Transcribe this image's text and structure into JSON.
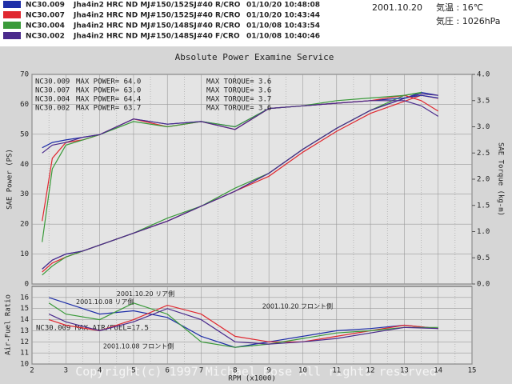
{
  "header": {
    "runs": [
      {
        "id": "NC30.009",
        "color": "#1e2ea8",
        "desc": "Jha4in2 HRC ND MJ#150/152SJ#40 R/CRO",
        "time": "01/10/20 10:48:08"
      },
      {
        "id": "NC30.007",
        "color": "#e02830",
        "desc": "Jha4in2 HRC ND MJ#150/152SJ#40 R/CRO",
        "time": "01/10/20 10:43:44"
      },
      {
        "id": "NC30.004",
        "color": "#3a9a3a",
        "desc": "Jha4in2 HRC ND MJ#150/148SJ#40 R/CRO",
        "time": "01/10/08 10:43:54"
      },
      {
        "id": "NC30.002",
        "color": "#4a2a8c",
        "desc": "Jha4in2 HRC ND MJ#150/148SJ#40 F/CRO",
        "time": "01/10/08 10:40:46"
      }
    ],
    "date": "2001.10.20",
    "temperature": "気温 : 16℃",
    "pressure": "気圧 : 1026hPa"
  },
  "chart_data": [
    {
      "type": "line",
      "title": "Absolute Power Examine Service",
      "ylabel": "SAE Power (PS)",
      "y2label": "SAE Torque (kg-m)",
      "x": [
        2.3,
        2.6,
        3,
        3.5,
        4,
        5,
        6,
        7,
        8,
        9,
        10,
        11,
        12,
        13,
        13.5,
        14
      ],
      "xlim": [
        2,
        15
      ],
      "xticks": [
        2,
        3,
        4,
        5,
        6,
        7,
        8,
        9,
        10,
        11,
        12,
        13,
        14,
        15
      ],
      "ylim": [
        0,
        70
      ],
      "yticks": [
        0,
        10,
        20,
        30,
        40,
        50,
        60,
        70
      ],
      "y2lim": [
        0,
        4
      ],
      "y2ticks": [
        {
          "value": 0,
          "label": "0.0"
        },
        0.5,
        {
          "value": 1,
          "label": "1.0"
        },
        1.5,
        {
          "value": 2,
          "label": "2.0"
        },
        2.5,
        {
          "value": 3,
          "label": "3.0"
        },
        3.5,
        {
          "value": 4,
          "label": "4.0"
        }
      ],
      "grid": true,
      "max_power": [
        "MAX POWER= 64.0",
        "MAX POWER= 63.0",
        "MAX POWER= 64.4",
        "MAX POWER= 63.7"
      ],
      "max_torque": [
        "MAX TORQUE= 3.6",
        "MAX TORQUE= 3.6",
        "MAX TORQUE= 3.7",
        "MAX TORQUE= 3.6"
      ],
      "series": [
        {
          "name": "NC30.009",
          "color": "#1e2ea8",
          "values": [
            5,
            8,
            10,
            11,
            13,
            17,
            21,
            26,
            31,
            37,
            45,
            52,
            58,
            62,
            64,
            63
          ]
        },
        {
          "name": "NC30.007",
          "color": "#e02830",
          "values": [
            4,
            7,
            9,
            11,
            13,
            17,
            21,
            26,
            31,
            36,
            44,
            51,
            57,
            61,
            63,
            62
          ]
        },
        {
          "name": "NC30.004",
          "color": "#3a9a3a",
          "values": [
            3,
            6,
            9,
            11,
            13,
            17,
            22,
            26,
            32,
            37,
            45,
            52,
            58,
            63,
            64,
            null
          ]
        },
        {
          "name": "NC30.002",
          "color": "#4a2a8c",
          "values": [
            5,
            8,
            10,
            11,
            13,
            17,
            21,
            26,
            31,
            37,
            45,
            52,
            58,
            62,
            63.5,
            63
          ]
        },
        {
          "color": "#1e2ea8",
          "axis": "y2",
          "values": [
            2.6,
            2.7,
            2.75,
            2.8,
            2.85,
            3.15,
            3.05,
            3.1,
            3.0,
            3.35,
            3.4,
            3.45,
            3.5,
            3.55,
            3.6,
            3.55
          ]
        },
        {
          "color": "#e02830",
          "axis": "y2",
          "values": [
            1.2,
            2.4,
            2.7,
            2.75,
            2.85,
            3.15,
            3.0,
            3.1,
            2.95,
            3.35,
            3.4,
            3.45,
            3.5,
            3.6,
            3.5,
            3.3
          ]
        },
        {
          "color": "#3a9a3a",
          "axis": "y2",
          "values": [
            0.8,
            2.2,
            2.65,
            2.75,
            2.85,
            3.1,
            3.0,
            3.1,
            3.0,
            3.35,
            3.4,
            3.5,
            3.55,
            3.6,
            3.65,
            null
          ]
        },
        {
          "color": "#4a2a8c",
          "axis": "y2",
          "values": [
            2.5,
            2.65,
            2.7,
            2.8,
            2.85,
            3.15,
            3.05,
            3.1,
            2.95,
            3.35,
            3.4,
            3.45,
            3.5,
            3.5,
            3.4,
            3.2
          ]
        }
      ]
    },
    {
      "type": "line",
      "ylabel": "Air-Fuel Ratio",
      "xlabel": "RPM (x1000)",
      "x": [
        2.5,
        3,
        4,
        5,
        6,
        7,
        8,
        9,
        10,
        11,
        12,
        13,
        14
      ],
      "xlim": [
        2,
        15
      ],
      "xticks": [
        2,
        3,
        4,
        5,
        6,
        7,
        8,
        9,
        10,
        11,
        12,
        13,
        14,
        15
      ],
      "ylim": [
        10,
        17
      ],
      "yticks": [
        10,
        11,
        12,
        13,
        14,
        15,
        16
      ],
      "grid": true,
      "note": "NC30.009  MAX-AIR/FUEL=17.5",
      "annotations": [
        {
          "text": "2001.10.20  リア側",
          "x": 4.5,
          "y": 16.3,
          "color": "#1e2ea8"
        },
        {
          "text": "2001.10.08  リア側",
          "x": 3.3,
          "y": 15.6,
          "color": "#3a9a3a"
        },
        {
          "text": "2001.10.20  フロント側",
          "x": 8.8,
          "y": 15.2,
          "color": "#e02830"
        },
        {
          "text": "2001.10.08  フロント側",
          "x": 4.1,
          "y": 11.6,
          "color": "#c04090"
        }
      ],
      "series": [
        {
          "color": "#1e2ea8",
          "values": [
            16,
            15.5,
            14.5,
            14.8,
            14.2,
            12.5,
            11.5,
            12,
            12.5,
            13,
            13.2,
            13.5,
            13.2
          ]
        },
        {
          "color": "#e02830",
          "values": [
            14,
            13.5,
            13,
            14,
            15.3,
            14.5,
            12.5,
            12,
            12,
            12.5,
            13,
            13.5,
            13.2
          ]
        },
        {
          "color": "#3a9a3a",
          "values": [
            15.5,
            14.5,
            14,
            15.5,
            14.5,
            12,
            11.5,
            11.8,
            12.3,
            12.8,
            13,
            13.3,
            13.3
          ]
        },
        {
          "color": "#4a2a8c",
          "values": [
            14.5,
            13.8,
            13,
            13.8,
            15,
            14,
            12,
            11.8,
            12,
            12.3,
            12.8,
            13.3,
            13.2
          ]
        }
      ]
    }
  ],
  "copyright": "Copyright(c) 1997 Michael Bose All rights reserved"
}
